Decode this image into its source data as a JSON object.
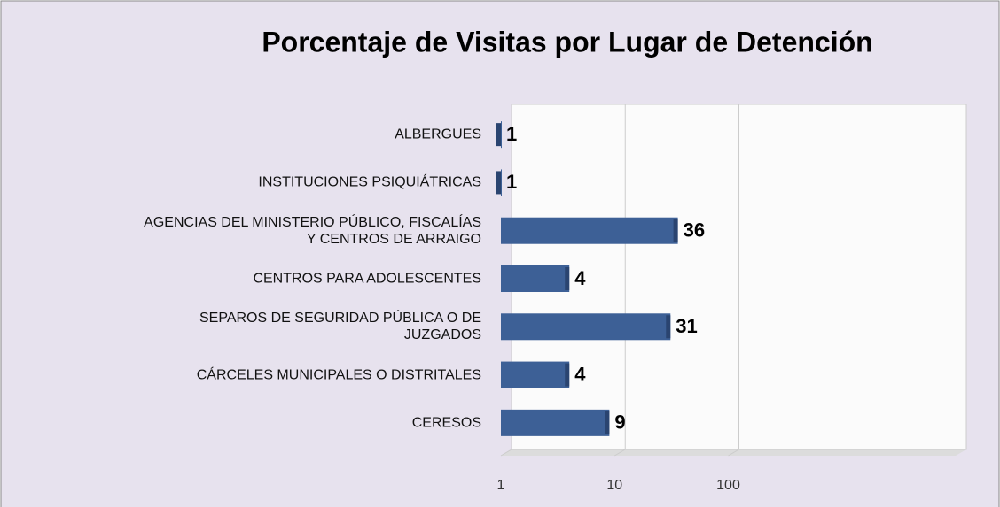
{
  "chart_data": {
    "type": "bar",
    "orientation": "horizontal",
    "title": "Porcentaje de Visitas por Lugar de Detención",
    "categories": [
      "ALBERGUES",
      "INSTITUCIONES PSIQUIÁTRICAS",
      "AGENCIAS DEL MINISTERIO PÚBLICO, FISCALÍAS\nY CENTROS DE ARRAIGO",
      "CENTROS PARA ADOLESCENTES",
      "SEPAROS DE SEGURIDAD PÚBLICA O DE\nJUZGADOS",
      "CÁRCELES MUNICIPALES O DISTRITALES",
      "CERESOS"
    ],
    "values": [
      1,
      1,
      36,
      4,
      31,
      4,
      9
    ],
    "color": "#3d6096",
    "xlim": [
      1,
      10000
    ],
    "xticks": [
      1,
      10,
      100
    ],
    "log_scale": true,
    "grid": true
  }
}
